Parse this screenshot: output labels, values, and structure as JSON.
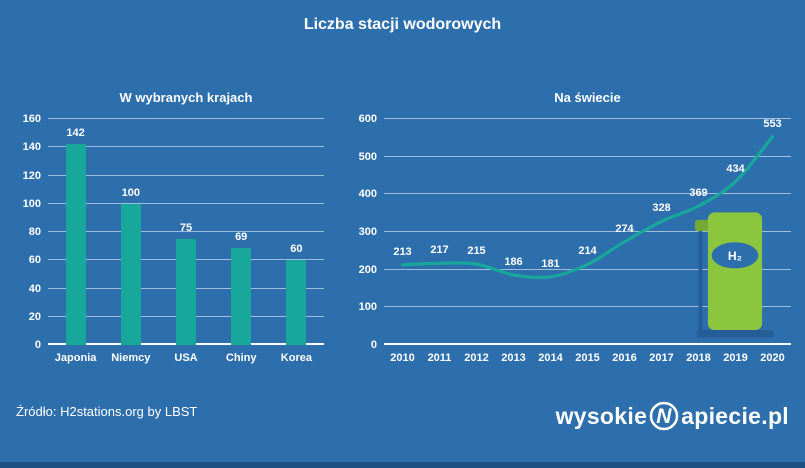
{
  "title": "Liczba stacji wodorowych",
  "source": "Źródło: H2stations.org by LBST",
  "logo": {
    "part1": "wysokie",
    "n": "N",
    "part2": "apiecie.pl"
  },
  "colors": {
    "background": "#2d6ead",
    "accent_teal": "#17a79b",
    "pump_green": "#8cc63e",
    "dark_blue": "#245d97"
  },
  "chart_data": [
    {
      "type": "bar",
      "title": "W wybranych krajach",
      "categories": [
        "Japonia",
        "Niemcy",
        "USA",
        "Chiny",
        "Korea"
      ],
      "values": [
        142,
        100,
        75,
        69,
        60
      ],
      "ylim": [
        0,
        160
      ],
      "ytick_step": 20,
      "grid": true,
      "bar_color": "#17a79b"
    },
    {
      "type": "line",
      "title": "Na świecie",
      "categories": [
        "2010",
        "2011",
        "2012",
        "2013",
        "2014",
        "2015",
        "2016",
        "2017",
        "2018",
        "2019",
        "2020"
      ],
      "values": [
        213,
        217,
        215,
        186,
        181,
        214,
        274,
        328,
        369,
        434,
        553
      ],
      "ylim": [
        0,
        600
      ],
      "ytick_step": 100,
      "grid": true,
      "line_color": "#17a79b",
      "annotation": {
        "icon": "hydrogen-pump-icon",
        "label": "H₂"
      }
    }
  ]
}
